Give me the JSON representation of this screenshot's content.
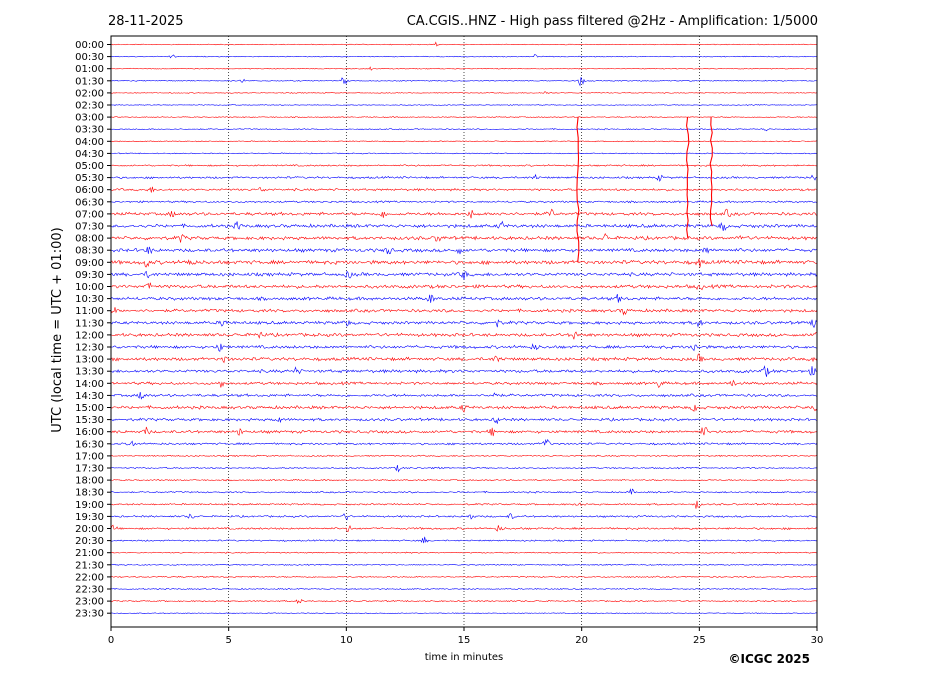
{
  "header": {
    "date": "28-11-2025",
    "title": "CA.CGIS..HNZ - High pass filtered @2Hz - Amplification: 1/5000"
  },
  "footer": {
    "copyright": "©ICGC 2025"
  },
  "colors": {
    "trace_a": "#ff0000",
    "trace_b": "#0000ff",
    "axis": "#000000"
  },
  "chart_data": {
    "type": "line",
    "chart_kind": "seismogram helicorder",
    "xlabel": "time in minutes",
    "ylabel": "UTC (local time = UTC + 01:00)",
    "xlim": [
      0,
      30
    ],
    "xticks": [
      "0",
      "5",
      "10",
      "15",
      "20",
      "25",
      "30"
    ],
    "vertical_gridlines": [
      5,
      10,
      15,
      20,
      25
    ],
    "grid_style": "dotted",
    "trace_color_order": [
      "red",
      "blue"
    ],
    "row_labels": [
      "00:00",
      "00:30",
      "01:00",
      "01:30",
      "02:00",
      "02:30",
      "03:00",
      "03:30",
      "04:00",
      "04:30",
      "05:00",
      "05:30",
      "06:00",
      "06:30",
      "07:00",
      "07:30",
      "08:00",
      "08:30",
      "09:00",
      "09:30",
      "10:00",
      "10:30",
      "11:00",
      "11:30",
      "12:00",
      "12:30",
      "13:00",
      "13:30",
      "14:00",
      "14:30",
      "15:00",
      "15:30",
      "16:00",
      "16:30",
      "17:00",
      "17:30",
      "18:00",
      "18:30",
      "19:00",
      "19:30",
      "20:00",
      "20:30",
      "21:00",
      "21:30",
      "22:00",
      "22:30",
      "23:00",
      "23:30"
    ],
    "row_amplitude": [
      0.5,
      0.5,
      0.5,
      0.6,
      0.5,
      0.5,
      0.6,
      0.7,
      0.6,
      0.6,
      1.0,
      1.2,
      1.3,
      1.1,
      1.8,
      2.0,
      2.0,
      2.0,
      2.2,
      2.0,
      2.0,
      1.9,
      1.8,
      1.8,
      1.9,
      1.8,
      1.9,
      1.8,
      1.6,
      1.6,
      1.8,
      1.6,
      1.7,
      1.2,
      0.8,
      0.8,
      0.8,
      0.9,
      1.0,
      1.1,
      1.2,
      0.9,
      0.7,
      0.7,
      0.8,
      0.7,
      0.8,
      0.5
    ],
    "events": [
      {
        "row": "00:00",
        "minute": 13.8,
        "amp": 2
      },
      {
        "row": "00:30",
        "minute": 2.6,
        "amp": 2
      },
      {
        "row": "00:30",
        "minute": 18.0,
        "amp": 2
      },
      {
        "row": "01:00",
        "minute": 11.0,
        "amp": 2
      },
      {
        "row": "01:30",
        "minute": 5.6,
        "amp": 2
      },
      {
        "row": "01:30",
        "minute": 9.9,
        "amp": 5
      },
      {
        "row": "01:30",
        "minute": 20.0,
        "amp": 7
      },
      {
        "row": "02:00",
        "minute": 18.5,
        "amp": 2
      },
      {
        "row": "03:30",
        "minute": 27.8,
        "amp": 2
      },
      {
        "row": "05:30",
        "minute": 18.0,
        "amp": 3
      },
      {
        "row": "05:30",
        "minute": 23.3,
        "amp": 3
      },
      {
        "row": "05:30",
        "minute": 29.8,
        "amp": 4
      },
      {
        "row": "06:00",
        "minute": 1.7,
        "amp": 3
      },
      {
        "row": "06:00",
        "minute": 6.4,
        "amp": 3
      },
      {
        "row": "07:00",
        "minute": 2.6,
        "amp": 3
      },
      {
        "row": "07:00",
        "minute": 11.6,
        "amp": 4
      },
      {
        "row": "07:00",
        "minute": 15.3,
        "amp": 4
      },
      {
        "row": "07:00",
        "minute": 16.6,
        "amp": 3
      },
      {
        "row": "07:00",
        "minute": 18.7,
        "amp": 5
      },
      {
        "row": "07:00",
        "minute": 26.2,
        "amp": 4
      },
      {
        "row": "07:30",
        "minute": 5.4,
        "amp": 4
      },
      {
        "row": "07:30",
        "minute": 16.6,
        "amp": 4
      },
      {
        "row": "07:30",
        "minute": 26.0,
        "amp": 5
      },
      {
        "row": "08:00",
        "minute": 3.0,
        "amp": 4
      },
      {
        "row": "08:00",
        "minute": 13.9,
        "amp": 4
      },
      {
        "row": "08:00",
        "minute": 21.0,
        "amp": 4
      },
      {
        "row": "08:00",
        "minute": 26.8,
        "amp": 4
      },
      {
        "row": "08:30",
        "minute": 1.6,
        "amp": 4
      },
      {
        "row": "08:30",
        "minute": 11.8,
        "amp": 5
      },
      {
        "row": "08:30",
        "minute": 14.8,
        "amp": 3
      },
      {
        "row": "08:30",
        "minute": 25.3,
        "amp": 4
      },
      {
        "row": "09:00",
        "minute": 1.5,
        "amp": 5
      },
      {
        "row": "09:00",
        "minute": 3.4,
        "amp": 6
      },
      {
        "row": "09:00",
        "minute": 25.0,
        "amp": 4
      },
      {
        "row": "09:30",
        "minute": 1.6,
        "amp": 4
      },
      {
        "row": "09:30",
        "minute": 10.1,
        "amp": 4
      },
      {
        "row": "09:30",
        "minute": 15.0,
        "amp": 5
      },
      {
        "row": "10:00",
        "minute": 1.6,
        "amp": 5
      },
      {
        "row": "10:00",
        "minute": 25.0,
        "amp": 4
      },
      {
        "row": "10:30",
        "minute": 13.6,
        "amp": 5
      },
      {
        "row": "10:30",
        "minute": 21.6,
        "amp": 5
      },
      {
        "row": "11:00",
        "minute": 0.1,
        "amp": 4
      },
      {
        "row": "11:00",
        "minute": 21.8,
        "amp": 4
      },
      {
        "row": "11:30",
        "minute": 4.8,
        "amp": 5
      },
      {
        "row": "11:30",
        "minute": 10.0,
        "amp": 4
      },
      {
        "row": "11:30",
        "minute": 16.4,
        "amp": 4
      },
      {
        "row": "11:30",
        "minute": 25.0,
        "amp": 4
      },
      {
        "row": "11:30",
        "minute": 29.9,
        "amp": 5
      },
      {
        "row": "12:00",
        "minute": 6.3,
        "amp": 4
      },
      {
        "row": "12:00",
        "minute": 19.7,
        "amp": 5
      },
      {
        "row": "12:00",
        "minute": 29.9,
        "amp": 5
      },
      {
        "row": "12:30",
        "minute": 4.6,
        "amp": 5
      },
      {
        "row": "12:30",
        "minute": 18.0,
        "amp": 4
      },
      {
        "row": "12:30",
        "minute": 24.8,
        "amp": 4
      },
      {
        "row": "13:00",
        "minute": 4.8,
        "amp": 4
      },
      {
        "row": "13:00",
        "minute": 16.4,
        "amp": 5
      },
      {
        "row": "13:00",
        "minute": 25.0,
        "amp": 4
      },
      {
        "row": "13:00",
        "minute": 29.9,
        "amp": 5
      },
      {
        "row": "13:30",
        "minute": 7.9,
        "amp": 4
      },
      {
        "row": "13:30",
        "minute": 27.8,
        "amp": 6
      },
      {
        "row": "13:30",
        "minute": 29.8,
        "amp": 4
      },
      {
        "row": "14:00",
        "minute": 4.7,
        "amp": 4
      },
      {
        "row": "14:00",
        "minute": 23.3,
        "amp": 4
      },
      {
        "row": "14:00",
        "minute": 26.4,
        "amp": 4
      },
      {
        "row": "14:30",
        "minute": 1.3,
        "amp": 5
      },
      {
        "row": "14:30",
        "minute": 16.3,
        "amp": 5
      },
      {
        "row": "15:00",
        "minute": 15.0,
        "amp": 4
      },
      {
        "row": "15:00",
        "minute": 24.8,
        "amp": 4
      },
      {
        "row": "15:00",
        "minute": 29.9,
        "amp": 5
      },
      {
        "row": "15:30",
        "minute": 7.1,
        "amp": 4
      },
      {
        "row": "15:30",
        "minute": 16.4,
        "amp": 4
      },
      {
        "row": "16:00",
        "minute": 1.5,
        "amp": 4
      },
      {
        "row": "16:00",
        "minute": 5.5,
        "amp": 4
      },
      {
        "row": "16:00",
        "minute": 16.2,
        "amp": 4
      },
      {
        "row": "16:00",
        "minute": 25.2,
        "amp": 6
      },
      {
        "row": "16:30",
        "minute": 0.9,
        "amp": 4
      },
      {
        "row": "16:30",
        "minute": 18.5,
        "amp": 6
      },
      {
        "row": "17:30",
        "minute": 12.2,
        "amp": 3
      },
      {
        "row": "17:30",
        "minute": 13.8,
        "amp": 3
      },
      {
        "row": "18:30",
        "minute": 22.1,
        "amp": 3
      },
      {
        "row": "19:00",
        "minute": 19.9,
        "amp": 3
      },
      {
        "row": "19:00",
        "minute": 24.9,
        "amp": 5
      },
      {
        "row": "19:30",
        "minute": 3.4,
        "amp": 3
      },
      {
        "row": "19:30",
        "minute": 10.0,
        "amp": 4
      },
      {
        "row": "19:30",
        "minute": 15.3,
        "amp": 3
      },
      {
        "row": "19:30",
        "minute": 17.0,
        "amp": 3
      },
      {
        "row": "20:00",
        "minute": 0.1,
        "amp": 4
      },
      {
        "row": "20:00",
        "minute": 10.1,
        "amp": 3
      },
      {
        "row": "20:00",
        "minute": 16.5,
        "amp": 4
      },
      {
        "row": "20:30",
        "minute": 13.3,
        "amp": 4
      },
      {
        "row": "23:00",
        "minute": 8.0,
        "amp": 3
      }
    ],
    "spikes": [
      {
        "from_row": "03:00",
        "to_row": "09:00",
        "minute": 19.85
      },
      {
        "from_row": "03:00",
        "to_row": "08:00",
        "minute": 24.5
      },
      {
        "from_row": "03:00",
        "to_row": "07:30",
        "minute": 25.5
      }
    ]
  }
}
